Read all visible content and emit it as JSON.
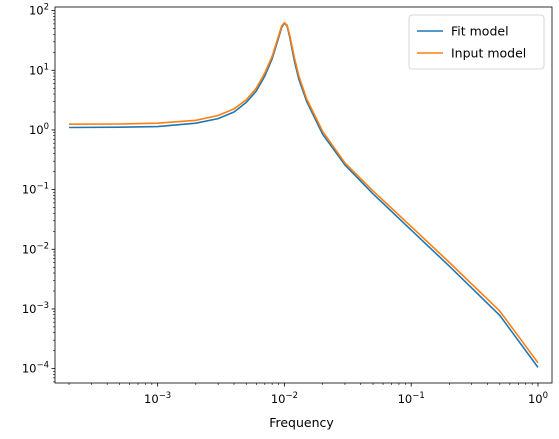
{
  "chart_data": {
    "type": "line",
    "title": "",
    "xlabel": "Frequency",
    "ylabel": "",
    "xscale": "log",
    "yscale": "log",
    "xlim": [
      0.000155,
      1.29
    ],
    "ylim": [
      5.74e-05,
      115
    ],
    "grid": false,
    "legend_position": "top-right",
    "x_tick_labels": [
      {
        "base": "10",
        "exp": "−3",
        "value": 0.001
      },
      {
        "base": "10",
        "exp": "−2",
        "value": 0.01
      },
      {
        "base": "10",
        "exp": "−1",
        "value": 0.1
      },
      {
        "base": "10",
        "exp": "0",
        "value": 1
      }
    ],
    "y_tick_labels": [
      {
        "base": "10",
        "exp": "−4",
        "value": 0.0001
      },
      {
        "base": "10",
        "exp": "−3",
        "value": 0.001
      },
      {
        "base": "10",
        "exp": "−2",
        "value": 0.01
      },
      {
        "base": "10",
        "exp": "−1",
        "value": 0.1
      },
      {
        "base": "10",
        "exp": "0",
        "value": 1
      },
      {
        "base": "10",
        "exp": "1",
        "value": 10
      },
      {
        "base": "10",
        "exp": "2",
        "value": 100
      }
    ],
    "series": [
      {
        "name": "Fit model",
        "color": "#1f77b4",
        "x": [
          0.0002,
          0.0005,
          0.001,
          0.002,
          0.003,
          0.004,
          0.005,
          0.006,
          0.007,
          0.008,
          0.009,
          0.0095,
          0.01,
          0.0105,
          0.011,
          0.012,
          0.013,
          0.015,
          0.02,
          0.03,
          0.05,
          0.1,
          0.2,
          0.5,
          1.0
        ],
        "y": [
          1.1,
          1.11,
          1.14,
          1.3,
          1.55,
          2.0,
          2.9,
          4.5,
          8.0,
          15.5,
          35.0,
          52.0,
          62.0,
          55.0,
          36.0,
          14.0,
          7.0,
          3.0,
          0.85,
          0.26,
          0.085,
          0.021,
          0.0052,
          0.00078,
          0.000105
        ]
      },
      {
        "name": "Input model",
        "color": "#ff7f0e",
        "x": [
          0.0002,
          0.0005,
          0.001,
          0.002,
          0.003,
          0.004,
          0.005,
          0.006,
          0.007,
          0.008,
          0.009,
          0.0095,
          0.01,
          0.0105,
          0.011,
          0.012,
          0.013,
          0.015,
          0.02,
          0.03,
          0.05,
          0.1,
          0.2,
          0.5,
          1.0
        ],
        "y": [
          1.25,
          1.26,
          1.3,
          1.45,
          1.75,
          2.25,
          3.2,
          5.0,
          9.0,
          17.0,
          38.0,
          55.0,
          63.0,
          57.0,
          39.0,
          16.0,
          8.0,
          3.3,
          0.95,
          0.28,
          0.095,
          0.024,
          0.006,
          0.00092,
          0.000125
        ]
      }
    ]
  }
}
